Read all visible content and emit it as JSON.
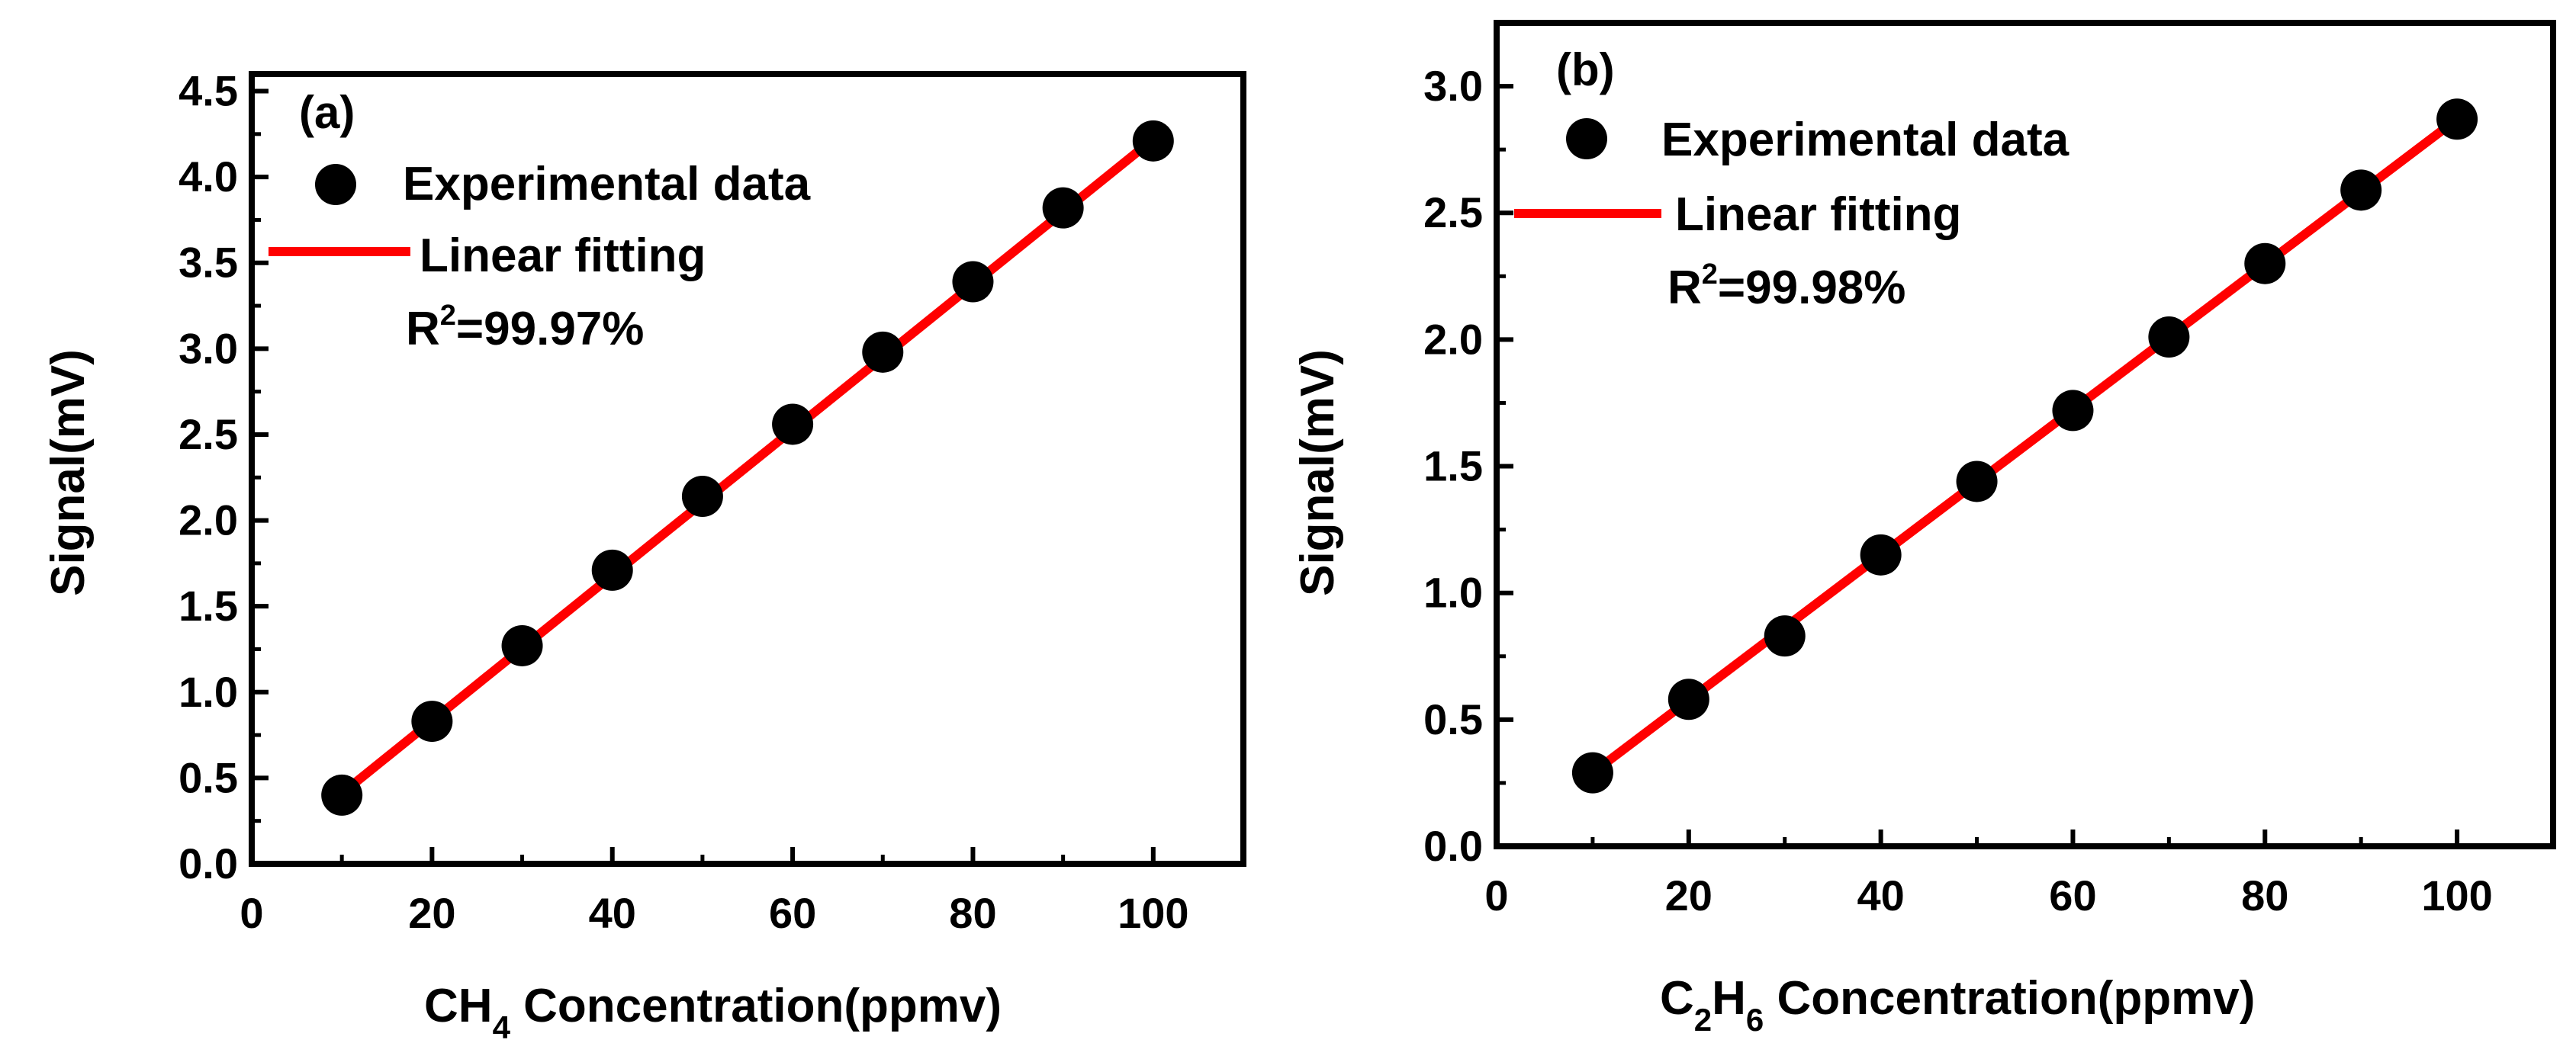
{
  "chart_data": [
    {
      "type": "scatter",
      "panel_label": "(a)",
      "title": "",
      "xlabel": "CH4 Concentration(ppmv)",
      "xlabel_parts": {
        "pre": "CH",
        "sub": "4",
        "post": " Concentration(ppmv)"
      },
      "ylabel": "Signal(mV)",
      "xlim": [
        0,
        110
      ],
      "ylim": [
        0,
        4.6
      ],
      "xticks": [
        0,
        20,
        40,
        60,
        80,
        100
      ],
      "yticks": [
        "0.0",
        "0.5",
        "1.0",
        "1.5",
        "2.0",
        "2.5",
        "3.0",
        "3.5",
        "4.0",
        "4.5"
      ],
      "grid": false,
      "legend_position": "top-left",
      "legend": {
        "markers_label": "Experimental data",
        "line_label": "Linear fitting"
      },
      "r_squared": {
        "pre": "R",
        "sup": "2",
        "post": "=99.97%"
      },
      "series": [
        {
          "name": "Experimental data",
          "kind": "points",
          "x": [
            10,
            20,
            30,
            40,
            50,
            60,
            70,
            80,
            90,
            100
          ],
          "y": [
            0.4,
            0.83,
            1.27,
            1.71,
            2.14,
            2.56,
            2.98,
            3.39,
            3.82,
            4.21
          ]
        },
        {
          "name": "Linear fitting",
          "kind": "line",
          "color": "#ff0000",
          "x": [
            10,
            100
          ],
          "y": [
            0.41,
            4.22
          ]
        }
      ]
    },
    {
      "type": "scatter",
      "panel_label": "(b)",
      "title": "",
      "xlabel": "C2H6 Concentration(ppmv)",
      "xlabel_parts": {
        "pre": "C",
        "sub": "2",
        "mid": "H",
        "sub2": "6",
        "post": " Concentration(ppmv)"
      },
      "ylabel": "Signal(mV)",
      "xlim": [
        0,
        110
      ],
      "ylim": [
        0,
        3.25
      ],
      "xticks": [
        0,
        20,
        40,
        60,
        80,
        100
      ],
      "yticks": [
        "0.0",
        "0.5",
        "1.0",
        "1.5",
        "2.0",
        "2.5",
        "3.0"
      ],
      "grid": false,
      "legend_position": "top-left",
      "legend": {
        "markers_label": "Experimental data",
        "line_label": "Linear fitting"
      },
      "r_squared": {
        "pre": "R",
        "sup": "2",
        "post": "=99.98%"
      },
      "series": [
        {
          "name": "Experimental data",
          "kind": "points",
          "x": [
            10,
            20,
            30,
            40,
            50,
            60,
            70,
            80,
            90,
            100
          ],
          "y": [
            0.29,
            0.58,
            0.83,
            1.15,
            1.44,
            1.72,
            2.01,
            2.3,
            2.59,
            2.87
          ]
        },
        {
          "name": "Linear fitting",
          "kind": "line",
          "color": "#ff0000",
          "x": [
            10,
            100
          ],
          "y": [
            0.29,
            2.87
          ]
        }
      ]
    }
  ]
}
